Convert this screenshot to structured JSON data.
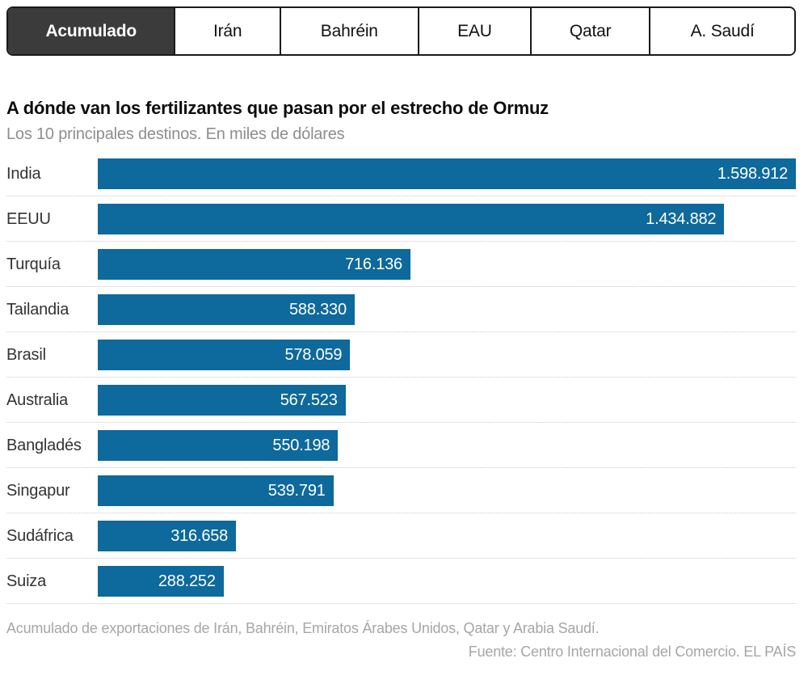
{
  "tabs": {
    "items": [
      {
        "label": "Acumulado",
        "active": true
      },
      {
        "label": "Irán",
        "active": false
      },
      {
        "label": "Bahréin",
        "active": false
      },
      {
        "label": "EAU",
        "active": false
      },
      {
        "label": "Qatar",
        "active": false
      },
      {
        "label": "A. Saudí",
        "active": false
      }
    ]
  },
  "chart": {
    "title": "A dónde van los fertilizantes que pasan por el estrecho de Ormuz",
    "subtitle": "Los 10 principales destinos. En miles de dólares"
  },
  "chart_data": {
    "type": "bar",
    "orientation": "horizontal",
    "title": "A dónde van los fertilizantes que pasan por el estrecho de Ormuz",
    "subtitle": "Los 10 principales destinos. En miles de dólares",
    "unit": "miles de dólares",
    "categories": [
      "India",
      "EEUU",
      "Turquía",
      "Tailandia",
      "Brasil",
      "Australia",
      "Bangladés",
      "Singapur",
      "Sudáfrica",
      "Suiza"
    ],
    "values": [
      1598912,
      1434882,
      716136,
      588330,
      578059,
      567523,
      550198,
      539791,
      316658,
      288252
    ],
    "value_labels": [
      "1.598.912",
      "1.434.882",
      "716.136",
      "588.330",
      "578.059",
      "567.523",
      "550.198",
      "539.791",
      "316.658",
      "288.252"
    ],
    "xlim": [
      0,
      1598912
    ],
    "grid": false,
    "legend": false,
    "bar_color": "#0E699C",
    "value_label_position": "inside-end"
  },
  "footer": {
    "note": "Acumulado de exportaciones de Irán, Bahréin, Emiratos Árabes Unidos, Qatar y Arabia Saudí.",
    "source": "Fuente: Centro Internacional del Comercio. EL PAÍS"
  },
  "colors": {
    "accent": "#0E699C",
    "active_tab_bg": "#3B3B3B",
    "tab_border": "#1A1A1A"
  }
}
